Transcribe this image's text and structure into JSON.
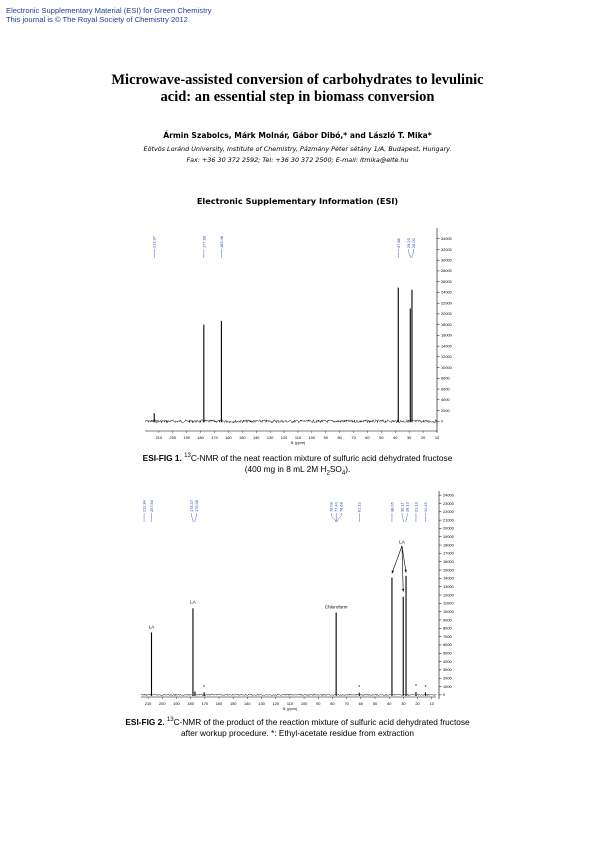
{
  "header": {
    "line1": "Electronic Supplementary Material (ESI) for Green Chemistry",
    "line2": "This journal is © The Royal Society of Chemistry 2012"
  },
  "paper": {
    "title_line1": "Microwave-assisted conversion of carbohydrates to levulinic",
    "title_line2": "acid: an essential step in biomass conversion",
    "authors": "Ármin Szabolcs, Márk Molnár, Gábor Dibó,* and László T. Mika*",
    "affiliation": "Eötvös Loránd University, Institute of Chemistry, Pázmány Péter sétány 1/A, Budapest, Hungary.",
    "contact": "Fax: +36 30 372 2592; Tel: +36 30 372 2500; E-mail: ltmika@elte.hu",
    "section": "Electronic Supplementary Information (ESI)"
  },
  "figure1": {
    "caption_label": "ESI-FIG 1.",
    "caption_sup": "13",
    "caption_line1_rest": "C-NMR of the neat reaction mixture of sulfuric acid dehydrated fructose",
    "caption_line2_a": "(400 mg in 8 mL 2M H",
    "caption_line2_sub1": "2",
    "caption_line2_b": "SO",
    "caption_line2_sub2": "4",
    "caption_line2_c": ")."
  },
  "figure2": {
    "caption_label": "ESI-FIG 2.",
    "caption_sup": "13",
    "caption_line1_rest": "C-NMR of the product of the reaction mixture of sulfuric acid dehydrated fructose",
    "caption_line2": "after workup procedure. *: Ethyl-acetate residue from extraction"
  },
  "chart_data": [
    {
      "type": "line",
      "xlabel": "f1 (ppm)",
      "xlim": [
        220,
        10
      ],
      "x_reversed": true,
      "ylim": [
        -2000,
        36000
      ],
      "x_ticks": [
        210,
        200,
        190,
        180,
        170,
        160,
        150,
        140,
        130,
        120,
        110,
        100,
        90,
        80,
        70,
        60,
        50,
        40,
        30,
        20,
        10
      ],
      "y_ticks": [
        0,
        2000,
        4000,
        6000,
        8000,
        10000,
        12000,
        14000,
        16000,
        18000,
        20000,
        22000,
        24000,
        26000,
        28000,
        30000,
        32000,
        34000
      ],
      "peak_labels": [
        "213.37",
        "177.69",
        "165.06",
        "37.86",
        "29.23",
        "28.00"
      ],
      "peaks": [
        {
          "x": 213.37,
          "y": 1500
        },
        {
          "x": 177.69,
          "y": 18000
        },
        {
          "x": 165.06,
          "y": 18700
        },
        {
          "x": 37.86,
          "y": 24900
        },
        {
          "x": 29.23,
          "y": 21000
        },
        {
          "x": 28.0,
          "y": 24500
        }
      ]
    },
    {
      "type": "line",
      "xlabel": "f1 (ppm)",
      "xlim": [
        215,
        7
      ],
      "x_reversed": true,
      "ylim": [
        -500,
        24500
      ],
      "x_ticks": [
        210,
        200,
        190,
        180,
        170,
        160,
        150,
        140,
        130,
        120,
        110,
        100,
        90,
        80,
        70,
        60,
        50,
        40,
        30,
        20,
        10
      ],
      "y_ticks": [
        0,
        1000,
        2000,
        3000,
        4000,
        5000,
        6000,
        7000,
        8000,
        9000,
        10000,
        11000,
        12000,
        13000,
        14000,
        15000,
        16000,
        17000,
        18000,
        19000,
        20000,
        21000,
        22000,
        23000,
        24000
      ],
      "peak_labels": [
        "212.84",
        "207.60",
        "178.37",
        "176.98",
        "78.03",
        "77.40",
        "76.68",
        "61.12",
        "38.05",
        "30.11",
        "28.13",
        "21.13",
        "14.45"
      ],
      "peaks": [
        {
          "x": 207.6,
          "y": 7500
        },
        {
          "x": 178.37,
          "y": 10400
        },
        {
          "x": 176.98,
          "y": 400
        },
        {
          "x": 170.5,
          "y": 300
        },
        {
          "x": 77.4,
          "y": 9900
        },
        {
          "x": 61.12,
          "y": 250
        },
        {
          "x": 38.05,
          "y": 14100
        },
        {
          "x": 30.11,
          "y": 11800
        },
        {
          "x": 28.13,
          "y": 14300
        },
        {
          "x": 21.13,
          "y": 350
        },
        {
          "x": 14.45,
          "y": 300
        }
      ],
      "annotations": [
        {
          "text": "LA",
          "x": 207.6,
          "y": 8000
        },
        {
          "text": "LA",
          "x": 178.37,
          "y": 11000
        },
        {
          "text": "Chloroform",
          "x": 77.4,
          "y": 10400
        },
        {
          "text": "LA",
          "x": 31.0,
          "y": 18200
        },
        {
          "text": "*",
          "x": 170.5,
          "y": 700
        },
        {
          "text": "*",
          "x": 61.12,
          "y": 700
        },
        {
          "text": "*",
          "x": 21.13,
          "y": 800
        },
        {
          "text": "*",
          "x": 14.45,
          "y": 700
        }
      ]
    }
  ]
}
